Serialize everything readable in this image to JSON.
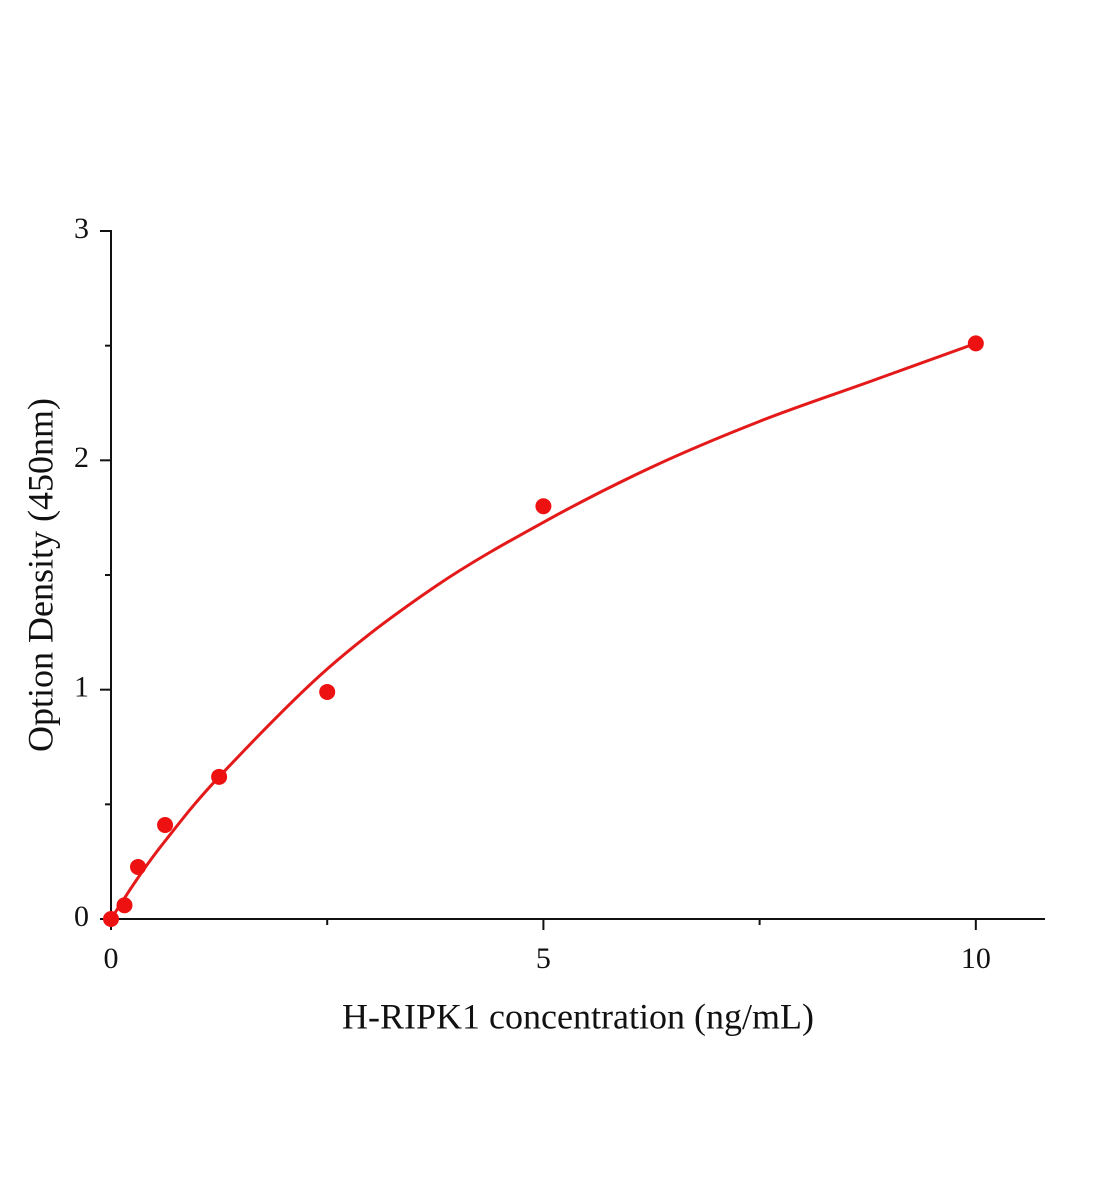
{
  "chart_data": {
    "type": "scatter",
    "x_label": "H-RIPK1 concentration (ng/mL)",
    "y_label": "Option Density (450nm)",
    "points": {
      "color": "#ee1111",
      "x": [
        0,
        0.156,
        0.3125,
        0.625,
        1.25,
        2.5,
        5,
        10
      ],
      "values": [
        0,
        0.06,
        0.227,
        0.41,
        0.62,
        0.99,
        1.8,
        2.51
      ]
    },
    "fit": {
      "color": "#e41a1a",
      "x": [
        0,
        0.3125,
        0.625,
        1.25,
        2.5,
        3.75,
        5,
        6.25,
        7.5,
        8.75,
        10
      ],
      "values": [
        0,
        0.18,
        0.34,
        0.62,
        1.09,
        1.45,
        1.73,
        1.97,
        2.17,
        2.34,
        2.51
      ]
    },
    "xlim": [
      0,
      10.8
    ],
    "ylim": [
      0,
      3
    ],
    "xticks": [
      0,
      5,
      10
    ],
    "yticks": [
      0,
      1,
      2,
      3
    ],
    "xminorticks": [
      2.5,
      7.5
    ],
    "yminorticks": [
      0.5,
      1.5,
      2.5
    ]
  }
}
